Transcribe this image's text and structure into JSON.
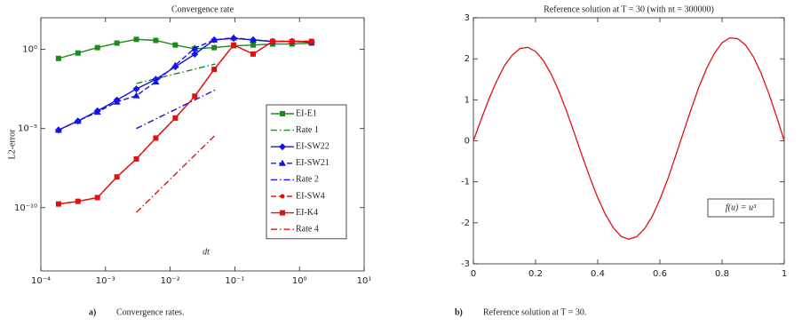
{
  "chart_data": [
    {
      "type": "line",
      "title": "Convergence rate",
      "xlabel": "dt",
      "ylabel": "L2-error",
      "xlog": true,
      "ylog": true,
      "grid": false,
      "legend": "right",
      "xlim": [
        0.0001,
        10
      ],
      "ylim": [
        1e-14,
        100
      ],
      "xticks": [
        {
          "value": 0.0001,
          "label": "10⁻⁴"
        },
        {
          "value": 0.001,
          "label": "10⁻³"
        },
        {
          "value": 0.01,
          "label": "10⁻²"
        },
        {
          "value": 0.1,
          "label": "10⁻¹"
        },
        {
          "value": 1,
          "label": "10⁰"
        },
        {
          "value": 10,
          "label": "10¹"
        }
      ],
      "yticks": [
        {
          "value": 1e-10,
          "label": "10⁻¹⁰"
        },
        {
          "value": 1e-05,
          "label": "10⁻⁵"
        },
        {
          "value": 1,
          "label": "10⁰"
        }
      ],
      "x": [
        0.0001875,
        0.000375,
        0.00075,
        0.0015,
        0.003,
        0.006,
        0.012,
        0.024,
        0.048,
        0.096,
        0.192,
        0.384,
        0.768,
        1.536
      ],
      "series": [
        {
          "name": "EI-E1",
          "color": "#1a8a1a",
          "line_style": "solid",
          "marker": "square",
          "values": [
            0.27,
            0.59,
            1.3,
            2.5,
            4.3,
            3.7,
            1.9,
            1.1,
            1.3,
            1.7,
            1.9,
            2.2,
            2.2,
            2.5
          ]
        },
        {
          "name": "Rate 1",
          "color": "#1a8a1a",
          "line_style": "dashdot",
          "marker": "none",
          "x": [
            0.003,
            0.05
          ],
          "values": [
            0.007,
            0.12
          ]
        },
        {
          "name": "EI-SW22",
          "color": "#1414e0",
          "line_style": "solid",
          "marker": "diamond",
          "values": [
            8e-06,
            3e-05,
            0.00013,
            0.00063,
            0.0032,
            0.013,
            0.08,
            0.5,
            4,
            5,
            4,
            3.2,
            3.2,
            2.9
          ]
        },
        {
          "name": "EI-SW21",
          "color": "#1414e0",
          "line_style": "dashed",
          "marker": "triangle",
          "values": [
            8e-06,
            3e-05,
            0.00011,
            0.00048,
            0.0012,
            0.009,
            0.1,
            1.2,
            4,
            5.5,
            4,
            3.2,
            3.2,
            2.9
          ]
        },
        {
          "name": "Rate 2",
          "color": "#1414e0",
          "line_style": "dashdot",
          "marker": "none",
          "x": [
            0.003,
            0.05
          ],
          "values": [
            1e-05,
            0.00278
          ]
        },
        {
          "name": "EI-SW4",
          "color": "#e01010",
          "line_style": "dashed",
          "marker": "dot",
          "values": [
            1.7e-10,
            2.5e-10,
            4.3e-10,
            8.7e-09,
            1.2e-07,
            2.5e-06,
            4.6e-05,
            0.0011,
            0.055,
            1.9,
            0.51,
            3.3,
            3.3,
            3.3
          ]
        },
        {
          "name": "EI-K4",
          "color": "#e01010",
          "line_style": "solid",
          "marker": "square",
          "values": [
            1.7e-10,
            2.5e-10,
            4.3e-10,
            8.7e-09,
            1.2e-07,
            2.5e-06,
            4.6e-05,
            0.0011,
            0.055,
            1.9,
            0.51,
            3.2,
            3.2,
            3.2
          ]
        },
        {
          "name": "Rate 4",
          "color": "#e01010",
          "line_style": "dashdot",
          "marker": "none",
          "x": [
            0.003,
            0.05
          ],
          "values": [
            5e-11,
            3.9e-06
          ]
        }
      ],
      "caption": {
        "label": "a)",
        "text": "Convergence rates."
      }
    },
    {
      "type": "line",
      "title": "Reference solution at T = 30 (with nt = 300000)",
      "xlog": false,
      "ylog": false,
      "grid": false,
      "xlim": [
        0,
        1
      ],
      "ylim": [
        -3,
        3
      ],
      "xticks": [
        0,
        0.2,
        0.4,
        0.6,
        0.8,
        1
      ],
      "yticks": [
        -3,
        -2,
        -1,
        0,
        1,
        2,
        3
      ],
      "x": [
        0,
        0.025,
        0.05,
        0.075,
        0.1,
        0.125,
        0.15,
        0.175,
        0.2,
        0.225,
        0.25,
        0.275,
        0.3,
        0.325,
        0.35,
        0.375,
        0.4,
        0.425,
        0.45,
        0.475,
        0.5,
        0.525,
        0.55,
        0.575,
        0.6,
        0.625,
        0.65,
        0.675,
        0.7,
        0.725,
        0.75,
        0.775,
        0.8,
        0.825,
        0.85,
        0.875,
        0.9,
        0.925,
        0.95,
        0.975,
        1
      ],
      "series": [
        {
          "color": "#e01010",
          "line_style": "solid",
          "marker": "none",
          "values": [
            0,
            0.52,
            1.02,
            1.46,
            1.83,
            2.09,
            2.25,
            2.28,
            2.18,
            1.96,
            1.63,
            1.21,
            0.72,
            0.18,
            -0.37,
            -0.9,
            -1.39,
            -1.8,
            -2.12,
            -2.33,
            -2.4,
            -2.34,
            -2.15,
            -1.85,
            -1.43,
            -0.94,
            -0.38,
            0.19,
            0.76,
            1.3,
            1.76,
            2.13,
            2.39,
            2.51,
            2.49,
            2.34,
            2.06,
            1.66,
            1.16,
            0.6,
            0
          ]
        }
      ],
      "annotation": "f(u) = u³",
      "caption": {
        "label": "b)",
        "text": "Reference solution at T = 30."
      }
    }
  ]
}
